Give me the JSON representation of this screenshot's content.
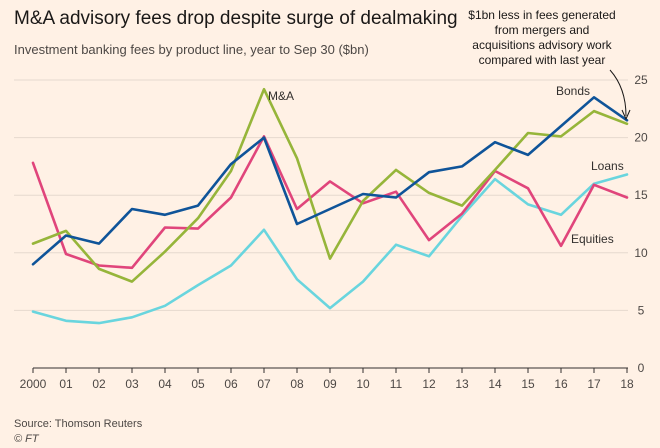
{
  "chart_data": {
    "type": "line",
    "title": "M&A advisory fees drop despite surge of dealmaking",
    "subtitle": "Investment banking fees by product line, year to Sep 30 ($bn)",
    "source": "Source: Thomson Reuters",
    "credit": "© FT",
    "x": [
      "2000",
      "01",
      "02",
      "03",
      "04",
      "05",
      "06",
      "07",
      "08",
      "09",
      "10",
      "11",
      "12",
      "13",
      "14",
      "15",
      "16",
      "17",
      "18"
    ],
    "ylim": [
      0,
      25
    ],
    "yticks": [
      0,
      5,
      10,
      15,
      20,
      25
    ],
    "grid": true,
    "annotation": [
      "$1bn less in fees generated",
      "from mergers and",
      "acquisitions advisory work",
      "compared with last year"
    ],
    "series": [
      {
        "name": "Bonds",
        "color": "#0f5499",
        "values": [
          9.0,
          11.5,
          10.8,
          13.8,
          13.3,
          14.1,
          17.7,
          20.0,
          12.5,
          13.8,
          15.1,
          14.8,
          17.0,
          17.5,
          19.6,
          18.5,
          21.0,
          23.5,
          21.5
        ]
      },
      {
        "name": "M&A",
        "color": "#96b53a",
        "values": [
          10.8,
          11.9,
          8.6,
          7.5,
          10.1,
          13.0,
          17.1,
          24.2,
          18.2,
          9.5,
          14.5,
          17.2,
          15.2,
          14.1,
          17.2,
          20.4,
          20.1,
          22.3,
          21.2
        ]
      },
      {
        "name": "Equities",
        "color": "#e0457b",
        "values": [
          17.8,
          9.9,
          8.9,
          8.7,
          12.2,
          12.1,
          14.8,
          20.1,
          13.8,
          16.2,
          14.3,
          15.3,
          11.1,
          13.4,
          17.1,
          15.6,
          10.6,
          15.9,
          14.8
        ]
      },
      {
        "name": "Loans",
        "color": "#69d5de",
        "values": [
          4.9,
          4.1,
          3.9,
          4.4,
          5.4,
          7.2,
          8.9,
          12.0,
          7.7,
          5.2,
          7.5,
          10.7,
          9.7,
          13.2,
          16.4,
          14.2,
          13.3,
          16.0,
          16.8
        ]
      }
    ]
  }
}
